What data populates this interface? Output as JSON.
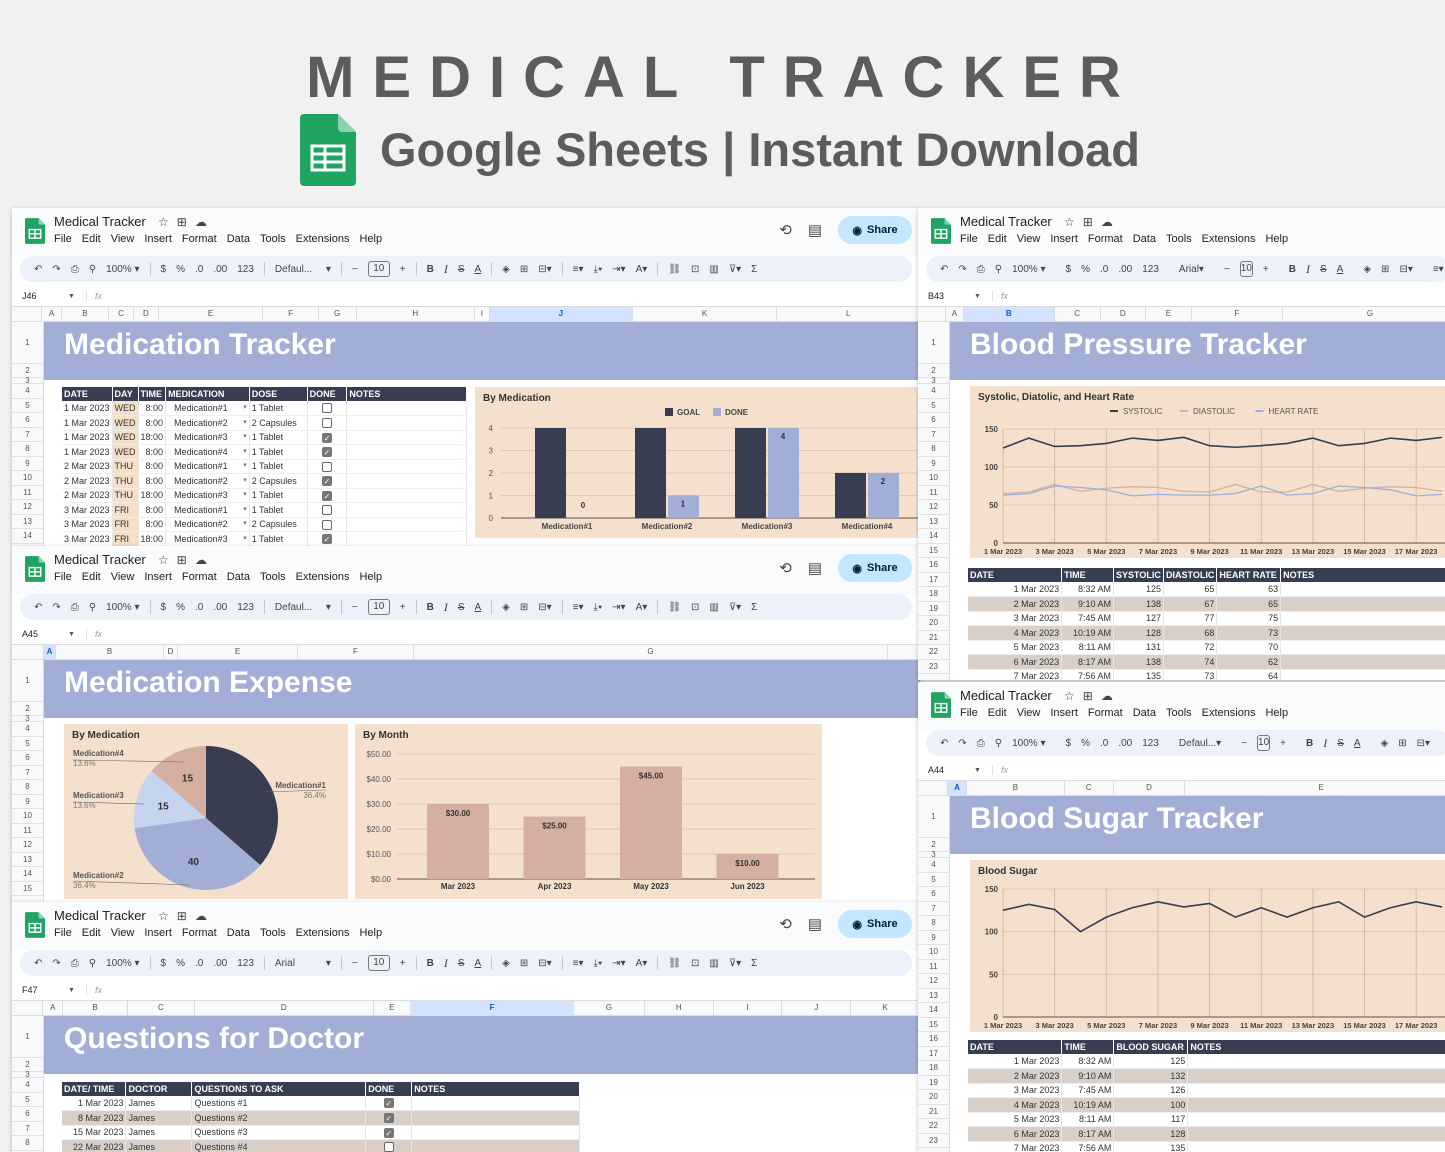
{
  "hero": {
    "title": "MEDICAL TRACKER",
    "subtitle": "Google Sheets | Instant Download"
  },
  "common": {
    "doc_title": "Medical Tracker",
    "menu": [
      "File",
      "Edit",
      "View",
      "Insert",
      "Format",
      "Data",
      "Tools",
      "Extensions",
      "Help"
    ],
    "share_label": "Share",
    "zoom": "100%",
    "currency": "$",
    "percent": "%",
    "dec_less": ".0",
    "dec_more": ".00",
    "num_format": "123",
    "font_size": "10",
    "bold": "B",
    "italic": "I",
    "fx": "fx"
  },
  "windows": {
    "medication_tracker": {
      "cell_ref": "J46",
      "font": "Defaul...",
      "columns": [
        "A",
        "B",
        "C",
        "D",
        "E",
        "F",
        "G",
        "H",
        "I",
        "J",
        "K",
        "L"
      ],
      "selected_column": "J",
      "rows": [
        "1",
        "2",
        "3",
        "4",
        "5",
        "6",
        "7",
        "8",
        "9",
        "10",
        "11",
        "12",
        "13",
        "14"
      ],
      "banner": "Medication Tracker",
      "table": {
        "headers": [
          "DATE",
          "DAY",
          "TIME",
          "MEDICATION",
          "DOSE",
          "DONE",
          "NOTES"
        ],
        "rows": [
          [
            "1 Mar 2023",
            "WED",
            "8:00",
            "Medication#1",
            "1 Tablet",
            false
          ],
          [
            "1 Mar 2023",
            "WED",
            "8:00",
            "Medication#2",
            "2 Capsules",
            false
          ],
          [
            "1 Mar 2023",
            "WED",
            "18:00",
            "Medication#3",
            "1 Tablet",
            true
          ],
          [
            "1 Mar 2023",
            "WED",
            "8:00",
            "Medication#4",
            "1 Tablet",
            true
          ],
          [
            "2 Mar 2023",
            "THU",
            "8:00",
            "Medication#1",
            "1 Tablet",
            false
          ],
          [
            "2 Mar 2023",
            "THU",
            "8:00",
            "Medication#2",
            "2 Capsules",
            true
          ],
          [
            "2 Mar 2023",
            "THU",
            "18:00",
            "Medication#3",
            "1 Tablet",
            true
          ],
          [
            "3 Mar 2023",
            "FRI",
            "8:00",
            "Medication#1",
            "1 Tablet",
            false
          ],
          [
            "3 Mar 2023",
            "FRI",
            "8:00",
            "Medication#2",
            "2 Capsules",
            false
          ],
          [
            "3 Mar 2023",
            "FRI",
            "18:00",
            "Medication#3",
            "1 Tablet",
            true
          ]
        ]
      }
    },
    "medication_expense": {
      "cell_ref": "A45",
      "font": "Defaul...",
      "columns": [
        "A",
        "B",
        "D",
        "E",
        "F",
        "G"
      ],
      "selected_column": "A",
      "rows": [
        "1",
        "2",
        "3",
        "4",
        "5",
        "6",
        "7",
        "8",
        "9",
        "10",
        "11",
        "12",
        "13",
        "14",
        "15"
      ],
      "banner": "Medication Expense"
    },
    "questions": {
      "cell_ref": "F47",
      "font": "Arial",
      "columns": [
        "A",
        "B",
        "C",
        "D",
        "E",
        "F",
        "G",
        "H",
        "I",
        "J",
        "K"
      ],
      "selected_column": "F",
      "rows": [
        "1",
        "2",
        "3",
        "4",
        "5",
        "6",
        "7",
        "8"
      ],
      "banner": "Questions for Doctor",
      "table": {
        "headers": [
          "DATE/ TIME",
          "DOCTOR",
          "QUESTIONS TO ASK",
          "DONE",
          "NOTES"
        ],
        "rows": [
          [
            "1 Mar 2023",
            "James",
            "Questions #1",
            true
          ],
          [
            "8 Mar 2023",
            "James",
            "Questions #2",
            true
          ],
          [
            "15 Mar 2023",
            "James",
            "Questions #3",
            true
          ],
          [
            "22 Mar 2023",
            "James",
            "Questions #4",
            false
          ]
        ]
      }
    },
    "blood_pressure": {
      "cell_ref": "B43",
      "font": "Arial",
      "columns": [
        "A",
        "B",
        "C",
        "D",
        "E",
        "F",
        "G"
      ],
      "selected_column": "B",
      "rows": [
        "1",
        "2",
        "3",
        "4",
        "5",
        "6",
        "7",
        "8",
        "9",
        "10",
        "11",
        "12",
        "13",
        "14",
        "15",
        "16",
        "17",
        "18",
        "19",
        "20",
        "21",
        "22",
        "23"
      ],
      "banner": "Blood Pressure Tracker",
      "table": {
        "headers": [
          "DATE",
          "TIME",
          "SYSTOLIC",
          "DIASTOLIC",
          "HEART RATE",
          "NOTES"
        ],
        "rows": [
          [
            "1 Mar 2023",
            "8:32 AM",
            "125",
            "65",
            "63"
          ],
          [
            "2 Mar 2023",
            "9:10 AM",
            "138",
            "67",
            "65"
          ],
          [
            "3 Mar 2023",
            "7:45 AM",
            "127",
            "77",
            "75"
          ],
          [
            "4 Mar 2023",
            "10:19 AM",
            "128",
            "68",
            "73"
          ],
          [
            "5 Mar 2023",
            "8:11 AM",
            "131",
            "72",
            "70"
          ],
          [
            "6 Mar 2023",
            "8:17 AM",
            "138",
            "74",
            "62"
          ],
          [
            "7 Mar 2023",
            "7:56 AM",
            "135",
            "73",
            "64"
          ]
        ]
      }
    },
    "blood_sugar": {
      "cell_ref": "A44",
      "font": "Defaul...",
      "columns": [
        "A",
        "B",
        "C",
        "D",
        "E"
      ],
      "selected_column": "A",
      "rows": [
        "1",
        "2",
        "3",
        "4",
        "5",
        "6",
        "7",
        "8",
        "9",
        "10",
        "11",
        "12",
        "13",
        "14",
        "15",
        "16",
        "17",
        "18",
        "19",
        "20",
        "21",
        "22",
        "23"
      ],
      "banner": "Blood Sugar Tracker",
      "table": {
        "headers": [
          "DATE",
          "TIME",
          "BLOOD SUGAR",
          "NOTES"
        ],
        "rows": [
          [
            "1 Mar 2023",
            "8:32 AM",
            "125"
          ],
          [
            "2 Mar 2023",
            "9:10 AM",
            "132"
          ],
          [
            "3 Mar 2023",
            "7:45 AM",
            "126"
          ],
          [
            "4 Mar 2023",
            "10:19 AM",
            "100"
          ],
          [
            "5 Mar 2023",
            "8:11 AM",
            "117"
          ],
          [
            "6 Mar 2023",
            "8:17 AM",
            "128"
          ],
          [
            "7 Mar 2023",
            "7:56 AM",
            "135"
          ]
        ]
      }
    }
  },
  "colors": {
    "banner": "#a2aed6",
    "header_dark": "#383d52",
    "chart_bg": "#f4e0cd",
    "goal": "#383d52",
    "done": "#a2aed6",
    "diastolic": "#d8b0a0",
    "heart_rate": "#9aaee0",
    "expense_bar": "#d5afa2",
    "share_bg": "#c2e7ff",
    "alt_row": "#d8d0c8"
  },
  "chart_data": [
    {
      "id": "by_medication_done",
      "type": "bar",
      "title": "By Medication",
      "categories": [
        "Medication#1",
        "Medication#2",
        "Medication#3",
        "Medication#4"
      ],
      "series": [
        {
          "name": "GOAL",
          "values": [
            4,
            4,
            4,
            2
          ]
        },
        {
          "name": "DONE",
          "values": [
            0,
            1,
            4,
            2
          ]
        }
      ],
      "ylim": [
        0,
        4
      ],
      "yticks": [
        0,
        1,
        2,
        3,
        4
      ],
      "legend": "top"
    },
    {
      "id": "bp_chart",
      "type": "line",
      "title": "Systolic, Diatolic, and Heart Rate",
      "x": [
        "1 Mar 2023",
        "2 Mar 2023",
        "3 Mar 2023",
        "4 Mar 2023",
        "5 Mar 2023",
        "6 Mar 2023",
        "7 Mar 2023",
        "8 Mar 2023",
        "9 Mar 2023",
        "10 Mar 2023",
        "11 Mar 2023",
        "12 Mar 2023",
        "13 Mar 2023",
        "14 Mar 2023",
        "15 Mar 2023",
        "16 Mar 2023",
        "17 Mar 2023",
        "18 Mar 2023"
      ],
      "xticks": [
        "1 Mar 2023",
        "3 Mar 2023",
        "5 Mar 2023",
        "7 Mar 2023",
        "9 Mar 2023",
        "11 Mar 2023",
        "13 Mar 2023",
        "15 Mar 2023",
        "17 Mar 2023"
      ],
      "series": [
        {
          "name": "SYSTOLIC",
          "values": [
            125,
            138,
            127,
            128,
            131,
            138,
            135,
            139,
            128,
            126,
            128,
            131,
            138,
            128,
            131,
            138,
            135,
            139
          ]
        },
        {
          "name": "DIASTOLIC",
          "values": [
            65,
            67,
            77,
            68,
            72,
            74,
            73,
            68,
            67,
            77,
            67,
            67,
            77,
            68,
            72,
            74,
            73,
            68
          ]
        },
        {
          "name": "HEART RATE",
          "values": [
            63,
            65,
            75,
            73,
            70,
            62,
            64,
            63,
            63,
            65,
            75,
            63,
            65,
            75,
            73,
            70,
            62,
            64
          ]
        }
      ],
      "ylim": [
        0,
        150
      ],
      "yticks": [
        0,
        50,
        100,
        150
      ],
      "legend": "top"
    },
    {
      "id": "expense_pie",
      "type": "pie",
      "title": "By Medication",
      "labels": [
        "Medication#1",
        "Medication#2",
        "Medication#3",
        "Medication#4"
      ],
      "values": [
        40,
        40,
        15,
        15
      ],
      "percentages": [
        "36.4%",
        "36.4%",
        "13.6%",
        "13.6%"
      ]
    },
    {
      "id": "expense_month",
      "type": "bar",
      "title": "By Month",
      "categories": [
        "Mar 2023",
        "Apr 2023",
        "May 2023",
        "Jun 2023"
      ],
      "values": [
        30,
        25,
        45,
        10
      ],
      "value_labels": [
        "$30.00",
        "$25.00",
        "$45.00",
        "$10.00"
      ],
      "yticks": [
        "$0.00",
        "$10.00",
        "$20.00",
        "$30.00",
        "$40.00",
        "$50.00"
      ],
      "ylim": [
        0,
        50
      ]
    },
    {
      "id": "blood_sugar_chart",
      "type": "line",
      "title": "Blood Sugar",
      "x": [
        "1 Mar 2023",
        "2 Mar 2023",
        "3 Mar 2023",
        "4 Mar 2023",
        "5 Mar 2023",
        "6 Mar 2023",
        "7 Mar 2023",
        "8 Mar 2023",
        "9 Mar 2023",
        "10 Mar 2023",
        "11 Mar 2023",
        "12 Mar 2023",
        "13 Mar 2023",
        "14 Mar 2023",
        "15 Mar 2023",
        "16 Mar 2023",
        "17 Mar 2023",
        "18 Mar 2023"
      ],
      "xticks": [
        "1 Mar 2023",
        "3 Mar 2023",
        "5 Mar 2023",
        "7 Mar 2023",
        "9 Mar 2023",
        "11 Mar 2023",
        "13 Mar 2023",
        "15 Mar 2023",
        "17 Mar 2023"
      ],
      "series": [
        {
          "name": "BLOOD SUGAR",
          "values": [
            125,
            132,
            126,
            100,
            117,
            128,
            135,
            129,
            133,
            117,
            128,
            117,
            128,
            135,
            117,
            128,
            135,
            129
          ]
        }
      ],
      "ylim": [
        0,
        150
      ],
      "yticks": [
        0,
        50,
        100,
        150
      ]
    }
  ]
}
